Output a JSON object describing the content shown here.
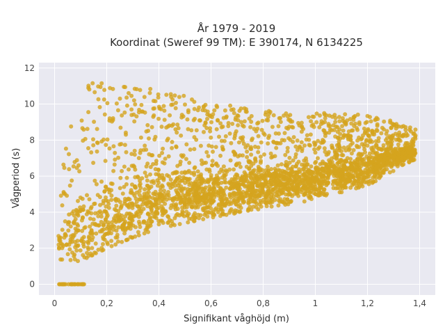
{
  "chart_data": {
    "type": "scatter",
    "title_line1": "År 1979 - 2019",
    "title_line2": "Koordinat (Sweref 99 TM): E 390174, N 6134225",
    "xlabel": "Signifikant våghöjd (m)",
    "ylabel": "Vågperiod (s)",
    "xlim": [
      -0.06,
      1.46
    ],
    "ylim": [
      -0.6,
      12.3
    ],
    "x_ticks": [
      0,
      0.2,
      0.4,
      0.6,
      0.8,
      1.0,
      1.2,
      1.4
    ],
    "x_tick_labels": [
      "0",
      "0,2",
      "0,4",
      "0,6",
      "0,8",
      "1",
      "1,2",
      "1,4"
    ],
    "y_ticks": [
      0,
      2,
      4,
      6,
      8,
      10,
      12
    ],
    "y_tick_labels": [
      "0",
      "2",
      "4",
      "6",
      "8",
      "10",
      "12"
    ],
    "grid": true,
    "point_color": "#d4a41e",
    "plot_background": "#e9e9f1",
    "envelope": {
      "lower": [
        [
          0.02,
          1.2
        ],
        [
          0.1,
          1.3
        ],
        [
          0.2,
          2.0
        ],
        [
          0.3,
          2.6
        ],
        [
          0.4,
          3.1
        ],
        [
          0.6,
          3.7
        ],
        [
          0.8,
          4.2
        ],
        [
          1.0,
          4.7
        ],
        [
          1.2,
          5.5
        ],
        [
          1.3,
          6.2
        ],
        [
          1.39,
          7.0
        ]
      ],
      "upper": [
        [
          0.02,
          5.5
        ],
        [
          0.04,
          8.0
        ],
        [
          0.08,
          9.6
        ],
        [
          0.14,
          11.3
        ],
        [
          0.25,
          11.0
        ],
        [
          0.35,
          10.9
        ],
        [
          0.5,
          10.8
        ],
        [
          0.6,
          10.1
        ],
        [
          0.8,
          9.7
        ],
        [
          1.0,
          9.5
        ],
        [
          1.15,
          9.5
        ],
        [
          1.25,
          9.3
        ],
        [
          1.32,
          8.9
        ],
        [
          1.4,
          8.6
        ]
      ],
      "dense_band_center": [
        [
          0.05,
          2.5
        ],
        [
          0.2,
          3.5
        ],
        [
          0.4,
          4.6
        ],
        [
          0.6,
          5.0
        ],
        [
          0.8,
          5.4
        ],
        [
          1.0,
          5.8
        ],
        [
          1.2,
          6.4
        ],
        [
          1.35,
          7.3
        ]
      ]
    },
    "zero_period_points": {
      "x_range": [
        0.015,
        0.12
      ],
      "y": 0
    }
  }
}
